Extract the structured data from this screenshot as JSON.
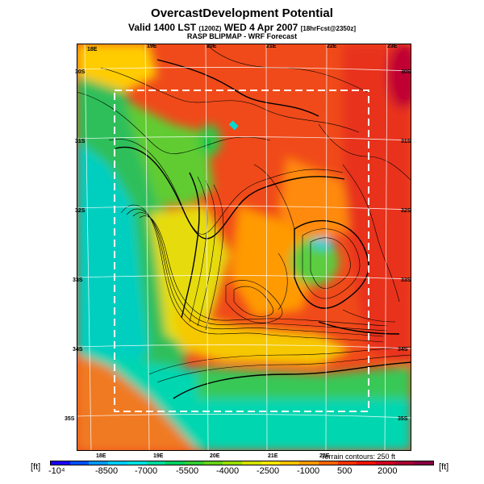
{
  "title": "OvercastDevelopment Potential",
  "valid_prefix": "Valid 1400 LST",
  "valid_utc": "(1200Z)",
  "valid_date": "WED 4 Apr 2007",
  "forecast_tag": "[18hrFcst@2350z]",
  "source": "RASP BLIPMAP - WRF Forecast",
  "terrain_note": "Terrain contours: 250 ft",
  "units": "[ft]",
  "units_right": "[ft]",
  "colorbar": {
    "colors": [
      "#1a00ff",
      "#0050ff",
      "#0099ff",
      "#00ccff",
      "#00e0e0",
      "#00d9a0",
      "#00d060",
      "#33cc33",
      "#66d019",
      "#99dd00",
      "#d4e000",
      "#ffe600",
      "#ffc400",
      "#ff9900",
      "#ff6600",
      "#ff3300",
      "#ee1100",
      "#cc0022",
      "#aa0033",
      "#880044"
    ],
    "labels": [
      "-10⁴",
      "-8500",
      "-7000",
      "-5500",
      "-4000",
      "-2500",
      "-1000",
      "500",
      "2000"
    ]
  },
  "axes": {
    "top": [
      "18E",
      "19E",
      "20E",
      "21E",
      "22E",
      "23E"
    ],
    "bottom": [
      "18E",
      "19E",
      "20E",
      "21E",
      "22E"
    ],
    "left": [
      "30S",
      "31S",
      "32S",
      "33S",
      "34S",
      "35S"
    ],
    "right": [
      "30S",
      "31S",
      "32S",
      "33S",
      "34S",
      "35S"
    ]
  },
  "colors": {
    "ocean_deep": "#f07020",
    "ocean_mid": "#ff8a20",
    "cyan": "#00d9d0",
    "green": "#33c645",
    "yellow": "#e8e000",
    "orange": "#ff8c00",
    "red": "#f03a18",
    "dark_red": "#d81818"
  }
}
